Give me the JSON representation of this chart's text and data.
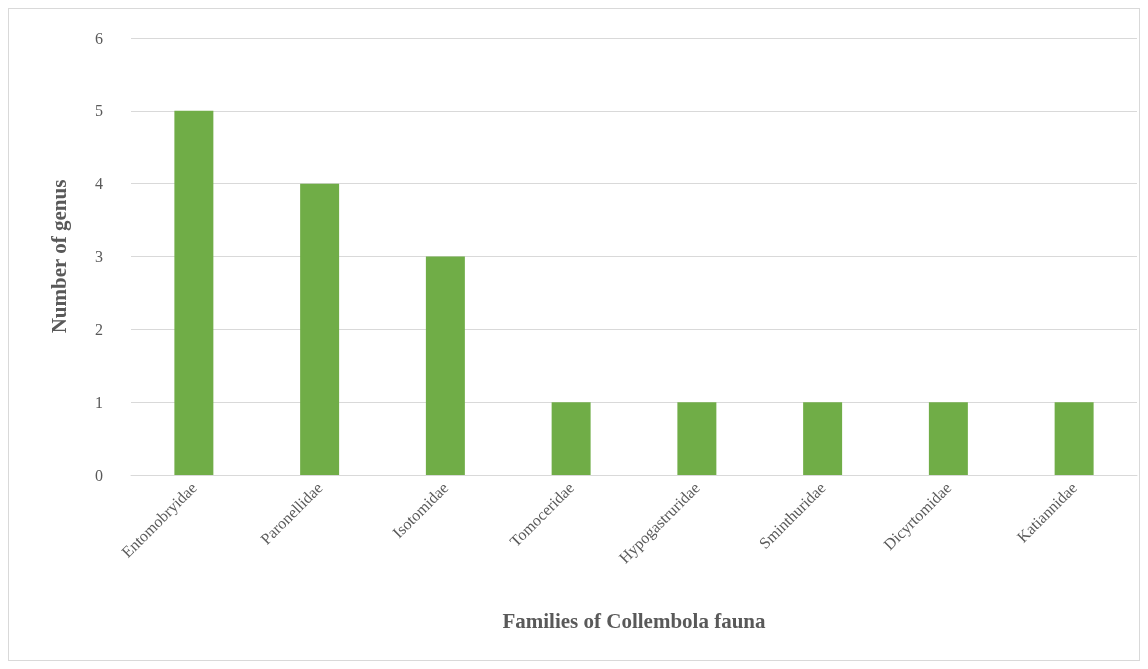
{
  "chart_data": {
    "type": "bar",
    "xlabel": "Families of Collembola fauna",
    "ylabel": "Number of genus",
    "categories": [
      "Entomobryidae",
      "Paronellidae",
      "Isotomidae",
      "Tomoceridae",
      "Hypogastruridae",
      "Sminthuridae",
      "Dicyrtomidae",
      "Katiannidae"
    ],
    "values": [
      5,
      4,
      3,
      1,
      1,
      1,
      1,
      1
    ],
    "color": "#70ad47",
    "ylim": [
      0,
      6
    ],
    "yticks": [
      0,
      1,
      2,
      3,
      4,
      5,
      6
    ],
    "grid": "y"
  }
}
